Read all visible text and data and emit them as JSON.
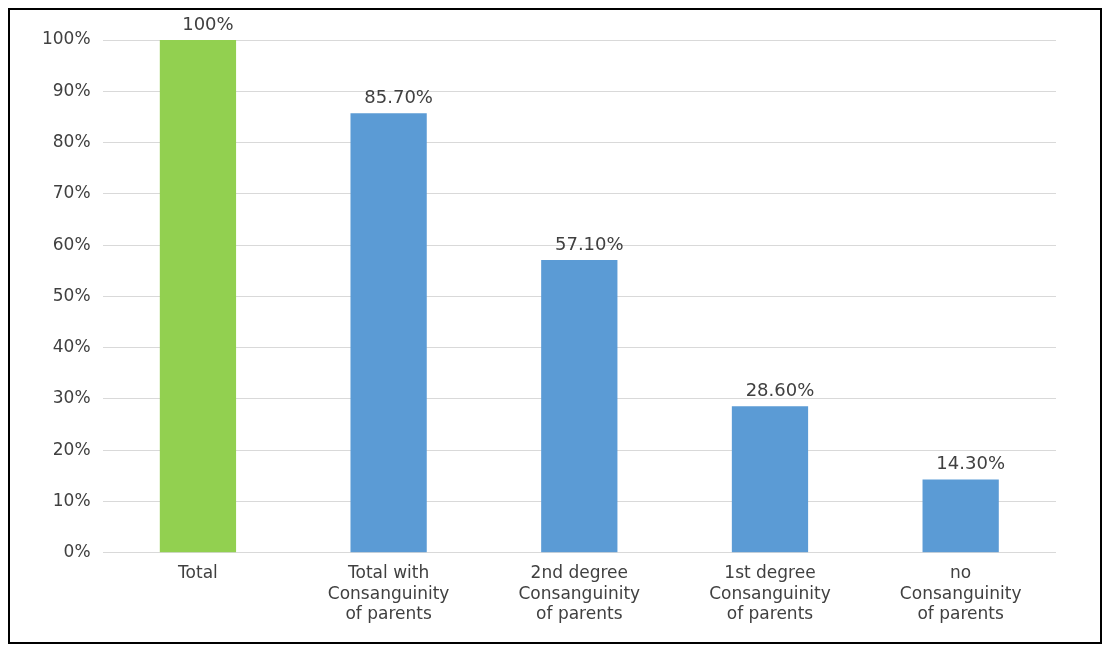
{
  "chart_data": {
    "type": "bar",
    "categories": [
      "Total",
      "Total with Consanguinity of parents",
      "2nd degree Consanguinity of parents",
      "1st degree Consanguinity of parents",
      "no Consanguinity of parents"
    ],
    "values": [
      100,
      85.7,
      57.1,
      28.6,
      14.3
    ],
    "colors": [
      "#92d050",
      "#5b9bd5",
      "#5b9bd5",
      "#5b9bd5",
      "#5b9bd5"
    ],
    "value_labels": [
      "100%",
      "85.70%",
      "57.10%",
      "28.60%",
      "14.30%"
    ],
    "ylim": [
      0,
      100
    ],
    "yticks": [
      {
        "value": 0,
        "label": "0%"
      },
      {
        "value": 10,
        "label": "10%"
      },
      {
        "value": 20,
        "label": "20%"
      },
      {
        "value": 30,
        "label": "30%"
      },
      {
        "value": 40,
        "label": "40%"
      },
      {
        "value": 50,
        "label": "50%"
      },
      {
        "value": 60,
        "label": "60%"
      },
      {
        "value": 70,
        "label": "70%"
      },
      {
        "value": 80,
        "label": "80%"
      },
      {
        "value": 90,
        "label": "90%"
      },
      {
        "value": 100,
        "label": "100%"
      }
    ],
    "grid": "y",
    "legend": false
  }
}
